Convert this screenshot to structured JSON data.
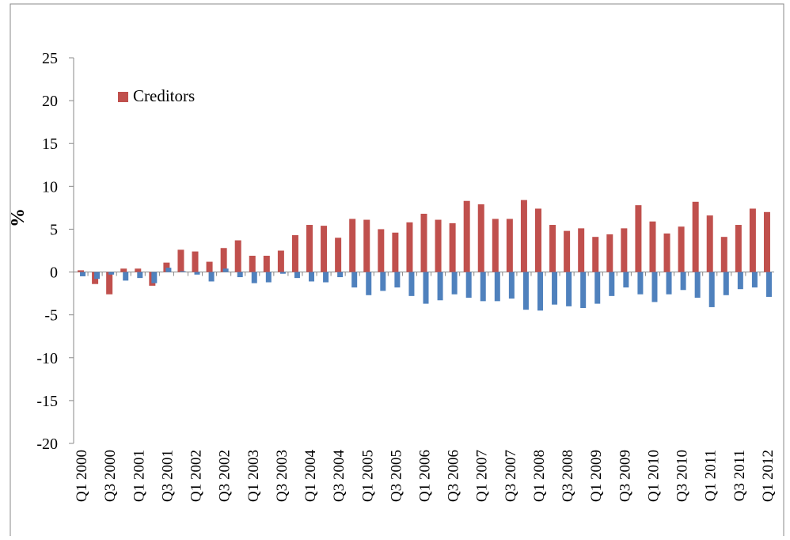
{
  "chart_data": {
    "type": "bar",
    "y_label": "%",
    "categories": [
      "Q1 2000",
      null,
      "Q3 2000",
      null,
      "Q1 2001",
      null,
      "Q3 2001",
      null,
      "Q1 2002",
      null,
      "Q3 2002",
      null,
      "Q1 2003",
      null,
      "Q3 2003",
      null,
      "Q1 2004",
      null,
      "Q3 2004",
      null,
      "Q1 2005",
      null,
      "Q3 2005",
      null,
      "Q1 2006",
      null,
      "Q3 2006",
      null,
      "Q1 2007",
      null,
      "Q3 2007",
      null,
      "Q1 2008",
      null,
      "Q3 2008",
      null,
      "Q1 2009",
      null,
      "Q3 2009",
      null,
      "Q1 2010",
      null,
      "Q3 2010",
      null,
      "Q1 2011",
      null,
      "Q3 2011",
      null,
      "Q1 2012"
    ],
    "series": [
      {
        "name": "Creditors",
        "color": "#c0504d",
        "values": [
          0.2,
          -1.4,
          -2.6,
          0.4,
          0.4,
          -1.6,
          1.1,
          2.6,
          2.4,
          1.2,
          2.8,
          3.7,
          1.9,
          1.9,
          2.5,
          4.3,
          5.5,
          5.4,
          4.0,
          6.2,
          6.1,
          5.0,
          4.6,
          5.8,
          6.8,
          6.1,
          5.7,
          8.3,
          7.9,
          6.2,
          6.2,
          8.4,
          7.4,
          5.5,
          4.8,
          5.1,
          4.1,
          4.4,
          5.1,
          7.8,
          5.9,
          4.5,
          5.3,
          8.2,
          6.6,
          4.1,
          5.5,
          7.4,
          7.0
        ]
      },
      {
        "color": "#4f81bd",
        "values": [
          -0.5,
          -0.8,
          -0.3,
          -1.0,
          -0.7,
          -1.3,
          0.5,
          0.1,
          -0.3,
          -1.1,
          0.4,
          -0.6,
          -1.3,
          -1.2,
          -0.2,
          -0.7,
          -1.1,
          -1.2,
          -0.6,
          -1.8,
          -2.7,
          -2.2,
          -1.8,
          -2.8,
          -3.7,
          -3.3,
          -2.6,
          -3.0,
          -3.4,
          -3.4,
          -3.1,
          -4.4,
          -4.5,
          -3.8,
          -4.0,
          -4.2,
          -3.7,
          -2.8,
          -1.8,
          -2.6,
          -3.5,
          -2.6,
          -2.1,
          -3.0,
          -4.1,
          -2.7,
          -2.0,
          -1.8,
          -2.9
        ]
      }
    ],
    "ylim": [
      -20,
      25
    ],
    "yticks": [
      -20,
      -15,
      -10,
      -5,
      0,
      5,
      10,
      15,
      20,
      25
    ],
    "legend": "upper-left"
  }
}
